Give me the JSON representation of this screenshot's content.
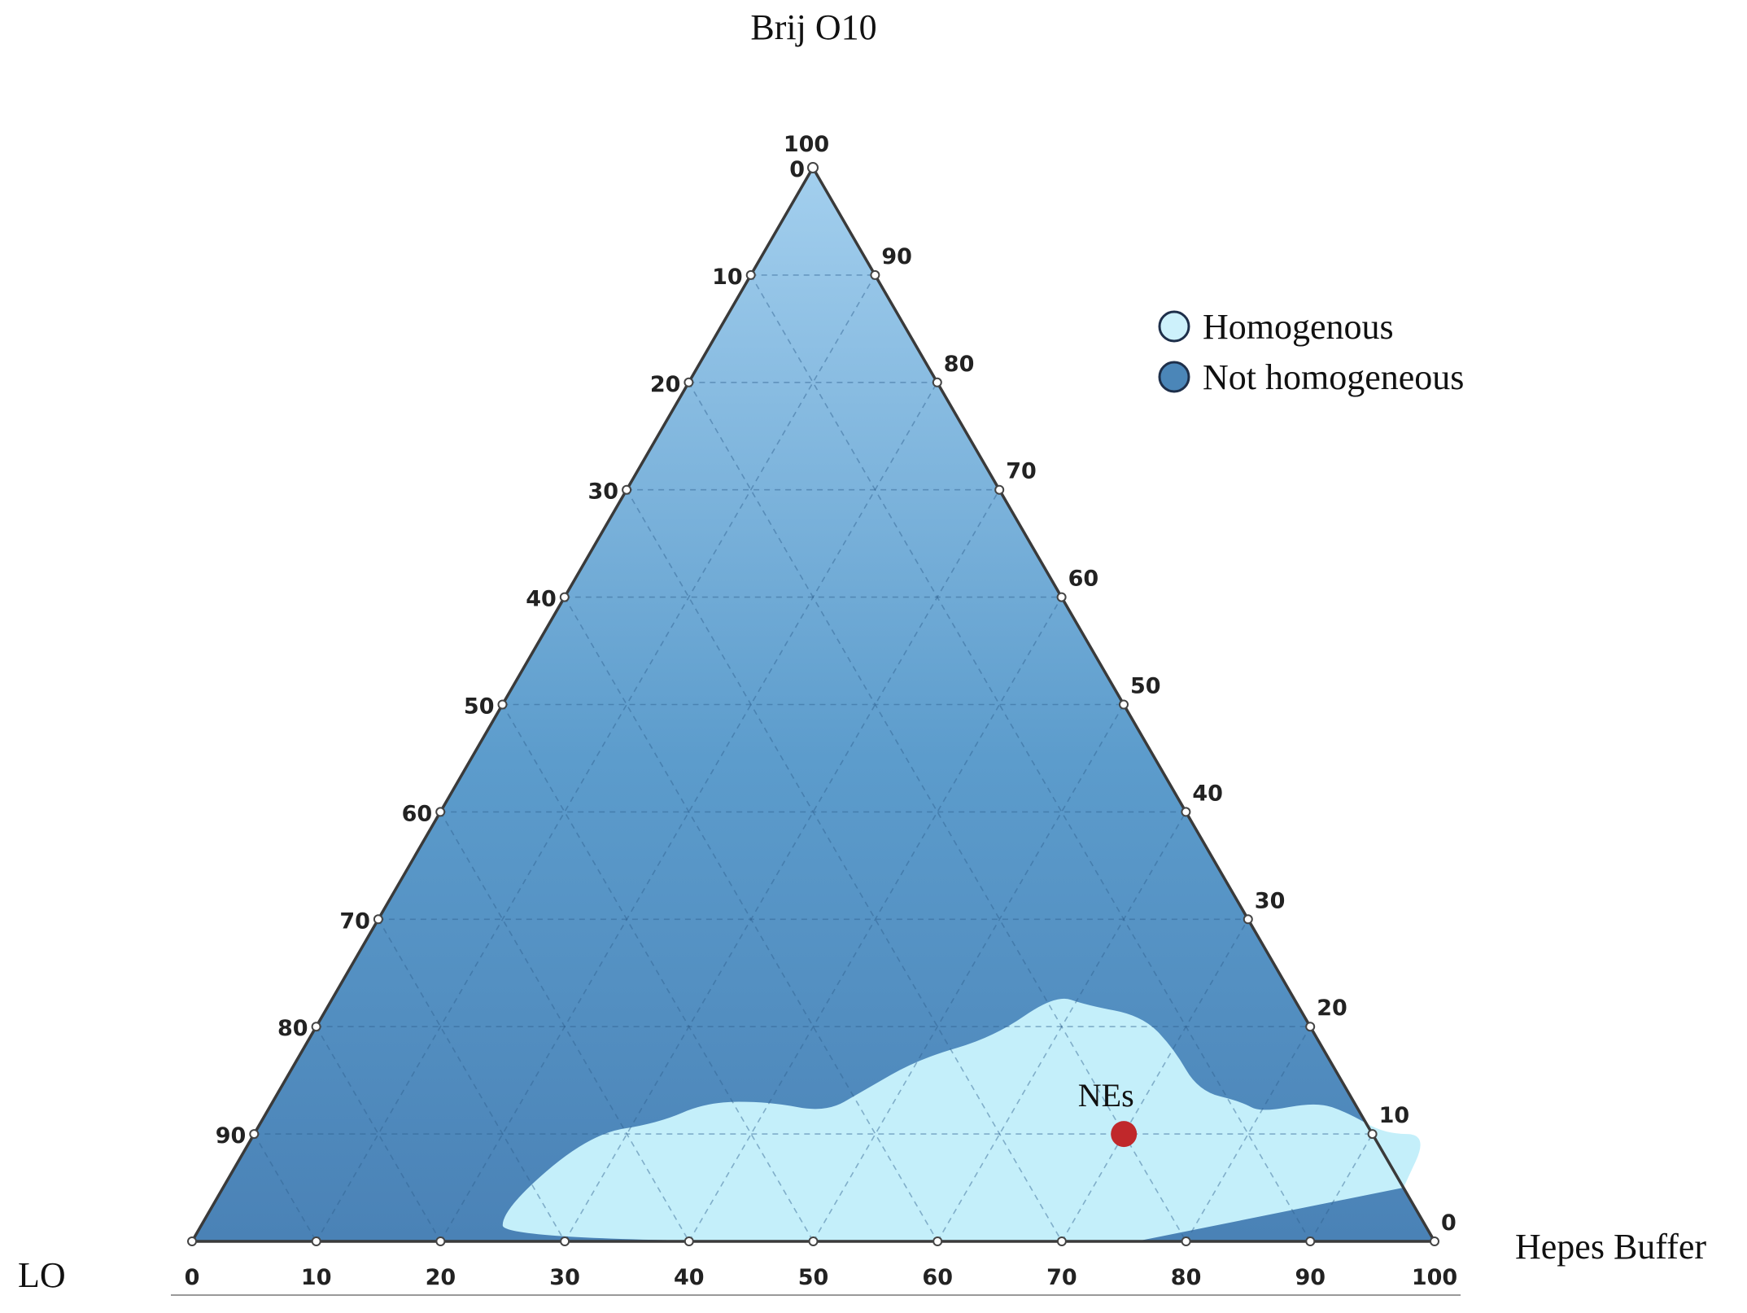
{
  "chart_data": {
    "type": "ternary",
    "vertices": {
      "top": "Brij O10",
      "left": "LO",
      "right": "Hepes Buffer"
    },
    "axis_range": [
      0,
      100
    ],
    "tick_step": 10,
    "ticks": [
      "0",
      "10",
      "20",
      "30",
      "40",
      "50",
      "60",
      "70",
      "80",
      "90",
      "100"
    ],
    "grid": true,
    "legend": {
      "position": "top-right",
      "items": [
        {
          "label": "Homogenous",
          "color": "#cdf1fb"
        },
        {
          "label": "Not homogeneous",
          "color": "#4b86b8"
        }
      ]
    },
    "regions": [
      {
        "name": "Homogenous",
        "color": "#c4effa",
        "boundary": [
          {
            "hepes": 76,
            "brij": 0
          },
          {
            "hepes": 25,
            "brij": 0
          },
          {
            "hepes": 23.5,
            "brij": 3
          },
          {
            "hepes": 27,
            "brij": 10
          },
          {
            "hepes": 32,
            "brij": 11
          },
          {
            "hepes": 35,
            "brij": 13
          },
          {
            "hepes": 40,
            "brij": 13
          },
          {
            "hepes": 45,
            "brij": 12
          },
          {
            "hepes": 47,
            "brij": 14
          },
          {
            "hepes": 50,
            "brij": 17
          },
          {
            "hepes": 55,
            "brij": 19
          },
          {
            "hepes": 58,
            "brij": 23
          },
          {
            "hepes": 61,
            "brij": 22
          },
          {
            "hepes": 66,
            "brij": 21
          },
          {
            "hepes": 70,
            "brij": 18
          },
          {
            "hepes": 74,
            "brij": 14
          },
          {
            "hepes": 78,
            "brij": 13
          },
          {
            "hepes": 80,
            "brij": 12
          },
          {
            "hepes": 84,
            "brij": 13
          },
          {
            "hepes": 87,
            "brij": 12
          },
          {
            "hepes": 91,
            "brij": 10
          },
          {
            "hepes": 94.5,
            "brij": 10
          },
          {
            "hepes": 95,
            "brij": 5
          }
        ]
      }
    ],
    "points": [
      {
        "label": "NEs",
        "hepes": 70,
        "brij": 10,
        "lo": 20,
        "color": "#c0282b"
      }
    ]
  }
}
